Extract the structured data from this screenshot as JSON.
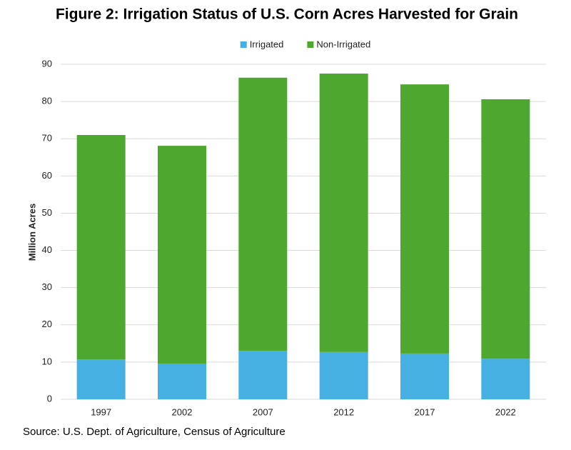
{
  "chart_data": {
    "type": "stacked_bar",
    "title": "Figure 2: Irrigation Status of U.S. Corn Acres Harvested for Grain",
    "y_label": "Million Acres",
    "source": "Source: U.S. Dept. of Agriculture, Census of Agriculture",
    "categories": [
      "1997",
      "2002",
      "2007",
      "2012",
      "2017",
      "2022"
    ],
    "series": [
      {
        "name": "Irrigated",
        "color": "#45b0e1",
        "values": [
          10.7,
          9.6,
          13.0,
          12.7,
          12.3,
          10.9
        ]
      },
      {
        "name": "Non-Irrigated",
        "color": "#4ea72e",
        "values": [
          60.3,
          58.5,
          73.4,
          74.8,
          72.3,
          69.7
        ]
      }
    ],
    "ylim": [
      0,
      90
    ],
    "yticks": [
      0,
      10,
      20,
      30,
      40,
      50,
      60,
      70,
      80,
      90
    ],
    "grid": true,
    "legend": "top"
  }
}
